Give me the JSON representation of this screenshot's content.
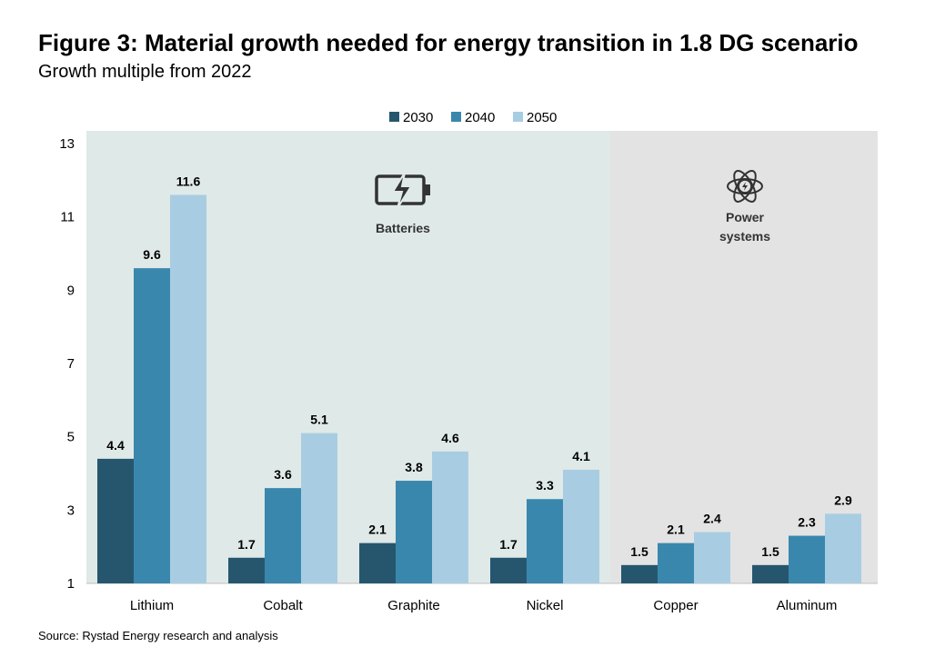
{
  "title": "Figure 3: Material growth needed for energy transition in 1.8 DG scenario",
  "subtitle": "Growth multiple from 2022",
  "source": "Source: Rystad Energy research and analysis",
  "colors": {
    "2030": "#26566e",
    "2040": "#3a87ae",
    "2050": "#a8cde2",
    "batteries_bg": "#dfe9e7",
    "power_bg": "#e3e3e3"
  },
  "regions": [
    {
      "label_lines": [
        "Batteries"
      ],
      "icon": "battery-icon",
      "categories": [
        "Lithium",
        "Cobalt",
        "Graphite",
        "Nickel"
      ]
    },
    {
      "label_lines": [
        "Power",
        "systems"
      ],
      "icon": "atom-icon",
      "categories": [
        "Copper",
        "Aluminum"
      ]
    }
  ],
  "chart_data": {
    "type": "bar",
    "categories": [
      "Lithium",
      "Cobalt",
      "Graphite",
      "Nickel",
      "Copper",
      "Aluminum"
    ],
    "series": [
      {
        "name": "2030",
        "values": [
          4.4,
          1.7,
          2.1,
          1.7,
          1.5,
          1.5
        ]
      },
      {
        "name": "2040",
        "values": [
          9.6,
          3.6,
          3.8,
          3.3,
          2.1,
          2.3
        ]
      },
      {
        "name": "2050",
        "values": [
          11.6,
          5.1,
          4.6,
          4.1,
          2.4,
          2.9
        ]
      }
    ],
    "data_labels": [
      [
        "4.4",
        "1.7",
        "2.1",
        "1.7",
        "1.5",
        "1.5"
      ],
      [
        "9.6",
        "3.6",
        "3.8",
        "3.3",
        "2.1",
        "2.3"
      ],
      [
        "11.6",
        "5.1",
        "4.6",
        "4.1",
        "2.4",
        "2.9"
      ]
    ],
    "yticks": [
      "1",
      "3",
      "5",
      "7",
      "9",
      "11",
      "13"
    ],
    "ylim": [
      1,
      13
    ],
    "legend_position": "top-center",
    "grid": false
  }
}
